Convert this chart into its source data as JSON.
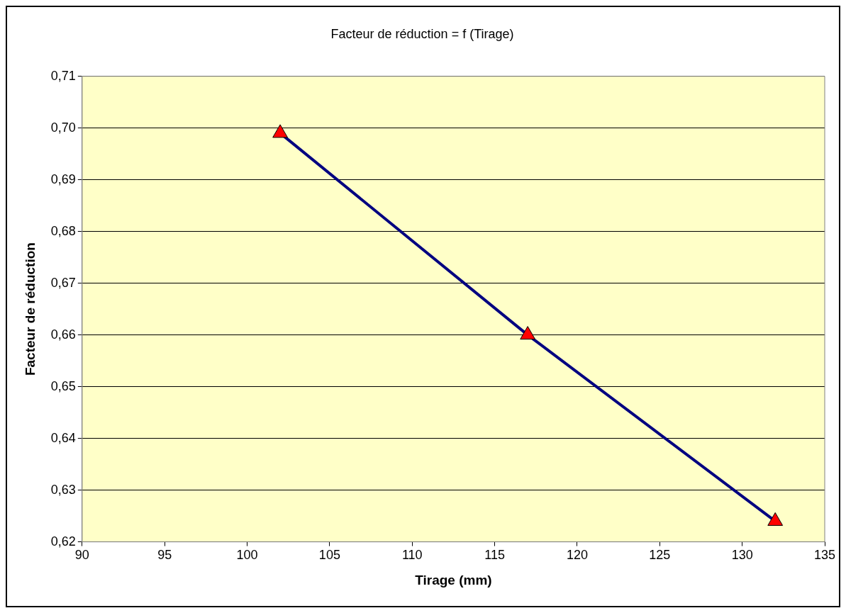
{
  "chart_data": {
    "type": "line",
    "title": "Facteur de réduction = f (Tirage)",
    "xlabel": "Tirage (mm)",
    "ylabel": "Facteur de réduction",
    "x": [
      102,
      117,
      132
    ],
    "series": [
      {
        "color": "#000080",
        "values": [
          0.699,
          0.66,
          0.624
        ]
      }
    ],
    "marker": "triangle",
    "line_style": "solid",
    "grid": "y",
    "legend": false,
    "xlim": [
      90,
      135
    ],
    "xticks": [
      90,
      95,
      100,
      105,
      110,
      115,
      120,
      125,
      130,
      135
    ],
    "ylim": [
      0.62,
      0.71
    ],
    "yticks": [
      {
        "value": 0.62,
        "label": "0,62"
      },
      {
        "value": 0.63,
        "label": "0,63"
      },
      {
        "value": 0.64,
        "label": "0,64"
      },
      {
        "value": 0.65,
        "label": "0,65"
      },
      {
        "value": 0.66,
        "label": "0,66"
      },
      {
        "value": 0.67,
        "label": "0,67"
      },
      {
        "value": 0.68,
        "label": "0,68"
      },
      {
        "value": 0.69,
        "label": "0,69"
      },
      {
        "value": 0.7,
        "label": "0,70"
      },
      {
        "value": 0.71,
        "label": "0,71"
      }
    ]
  }
}
